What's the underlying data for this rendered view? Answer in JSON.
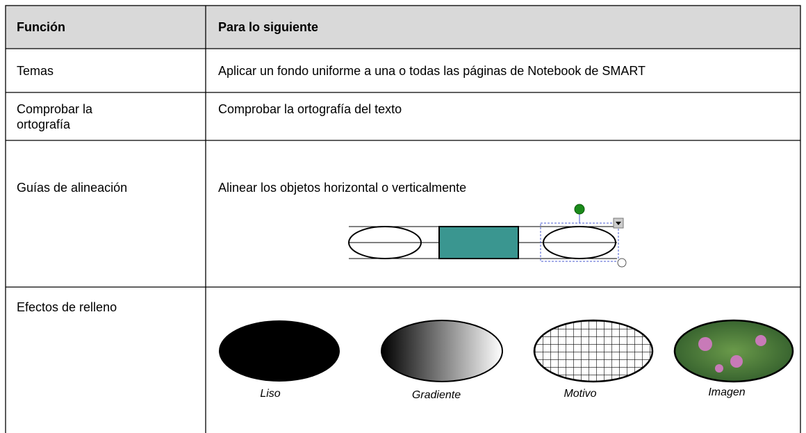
{
  "table": {
    "header": [
      "Función",
      "Para lo siguiente"
    ],
    "rows": [
      [
        "Temas",
        "Aplicar un fondo uniforme a una o todas las páginas de Notebook de SMART"
      ],
      [
        "Comprobar la ortografía",
        "Comprobar la ortografía del texto"
      ],
      [
        "Guías de alineación",
        "Alinear los objetos horizontal o verticalmente"
      ],
      [
        "Efectos de relleno"
      ]
    ],
    "fill_effects": [
      "Liso",
      "Gradiente",
      "Motivo",
      "Imagen"
    ]
  }
}
